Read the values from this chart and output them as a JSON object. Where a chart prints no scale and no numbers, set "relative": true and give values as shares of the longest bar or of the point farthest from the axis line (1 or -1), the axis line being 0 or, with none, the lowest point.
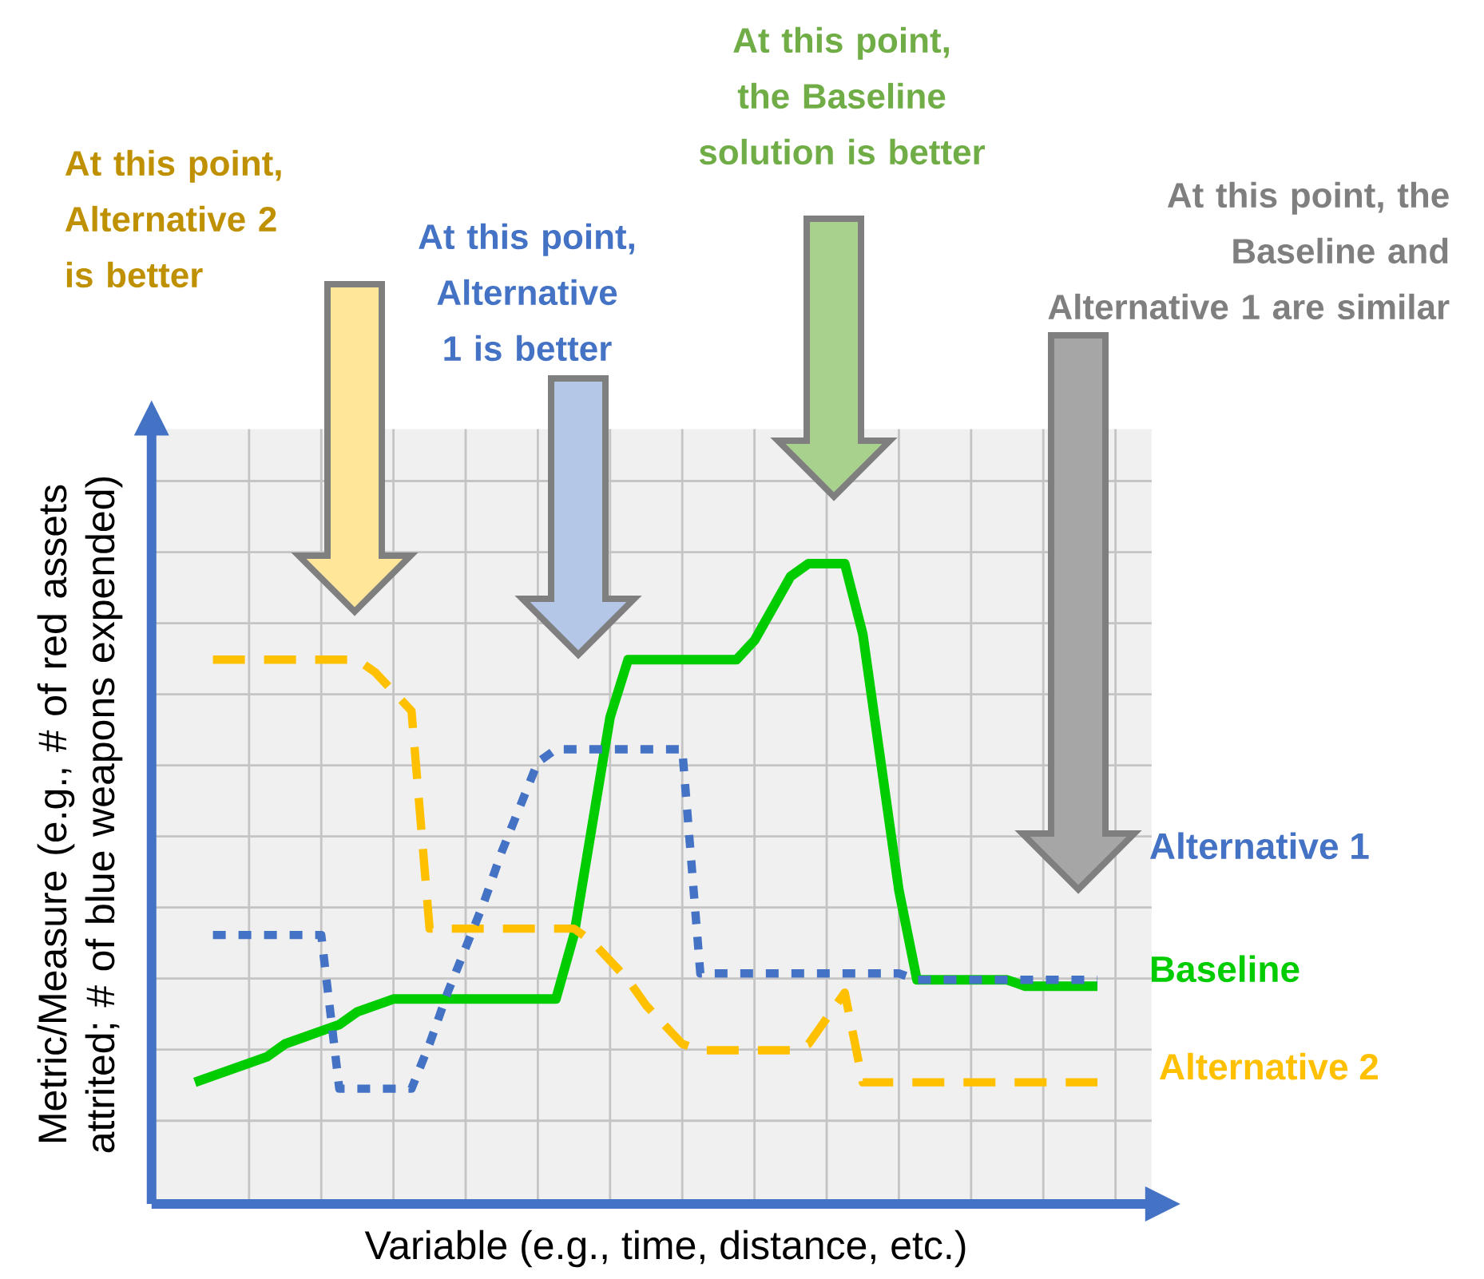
{
  "chart_data": {
    "type": "line",
    "relative": true,
    "xlabel": "Variable (e.g., time, distance, etc.)",
    "ylabel": "Metric/Measure (e.g., # of red assets attrited; # of blue weapons expended)",
    "categories": [
      null,
      null,
      null,
      null,
      null,
      null,
      null,
      null,
      null,
      null,
      null,
      null,
      null,
      null,
      null,
      null,
      null,
      null,
      null,
      null,
      null,
      null,
      null,
      null,
      null,
      null,
      null,
      null,
      null,
      null,
      null,
      null,
      null,
      null,
      null,
      null,
      null,
      null,
      null,
      null,
      null,
      null,
      null,
      null,
      null,
      null,
      null,
      null,
      null,
      null,
      null
    ],
    "grid": true,
    "series": [
      {
        "name": "Alternative 1",
        "color": "#4472c4",
        "line_style": "dotted",
        "values": [
          null,
          0.42,
          0.42,
          0.42,
          0.42,
          0.42,
          0.42,
          0.42,
          0.18,
          0.18,
          0.18,
          0.18,
          0.18,
          0.25,
          0.33,
          0.4,
          0.47,
          0.55,
          0.62,
          0.69,
          0.71,
          0.71,
          0.71,
          0.71,
          0.71,
          0.71,
          0.71,
          0.71,
          0.36,
          0.36,
          0.36,
          0.36,
          0.36,
          0.36,
          0.36,
          0.36,
          0.36,
          0.36,
          0.36,
          0.36,
          0.35,
          0.35,
          0.35,
          0.35,
          0.35,
          0.35,
          0.35,
          0.35,
          0.35,
          0.35,
          0.35
        ]
      },
      {
        "name": "Baseline",
        "color": "#00cc00",
        "line_style": "solid",
        "values": [
          0.19,
          0.2,
          0.21,
          0.22,
          0.23,
          0.25,
          0.26,
          0.27,
          0.28,
          0.3,
          0.31,
          0.32,
          0.32,
          0.32,
          0.32,
          0.32,
          0.32,
          0.32,
          0.32,
          0.32,
          0.32,
          0.42,
          0.59,
          0.76,
          0.85,
          0.85,
          0.85,
          0.85,
          0.85,
          0.85,
          0.85,
          0.88,
          0.93,
          0.98,
          1.0,
          1.0,
          1.0,
          0.89,
          0.69,
          0.49,
          0.35,
          0.35,
          0.35,
          0.35,
          0.35,
          0.35,
          0.34,
          0.34,
          0.34,
          0.34,
          0.34
        ]
      },
      {
        "name": "Alternative 2",
        "color": "#ffc000",
        "line_style": "dashed",
        "values": [
          null,
          0.85,
          0.85,
          0.85,
          0.85,
          0.85,
          0.85,
          0.85,
          0.85,
          0.85,
          0.83,
          0.8,
          0.77,
          0.43,
          0.43,
          0.43,
          0.43,
          0.43,
          0.43,
          0.43,
          0.43,
          0.43,
          0.41,
          0.38,
          0.35,
          0.31,
          0.28,
          0.25,
          0.24,
          0.24,
          0.24,
          0.24,
          0.24,
          0.24,
          0.25,
          0.29,
          0.33,
          0.19,
          0.19,
          0.19,
          0.19,
          0.19,
          0.19,
          0.19,
          0.19,
          0.19,
          0.19,
          0.19,
          0.19,
          0.19,
          0.19
        ]
      }
    ],
    "annotations": [
      "At this point, Alternative 2 is better",
      "At this point, Alternative 1 is better",
      "At this point, the Baseline solution is better",
      "At this point, the Baseline and Alternative 1 are similar"
    ]
  }
}
